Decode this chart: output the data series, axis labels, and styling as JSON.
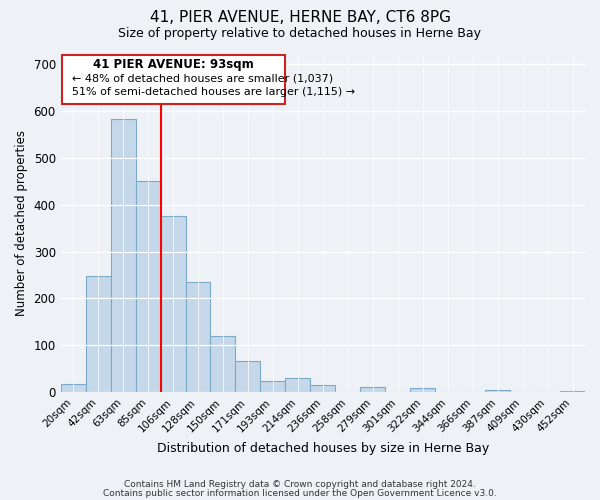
{
  "title": "41, PIER AVENUE, HERNE BAY, CT6 8PG",
  "subtitle": "Size of property relative to detached houses in Herne Bay",
  "xlabel": "Distribution of detached houses by size in Herne Bay",
  "ylabel": "Number of detached properties",
  "bar_color": "#c5d8ea",
  "bar_edge_color": "#7aaac8",
  "categories": [
    "20sqm",
    "42sqm",
    "63sqm",
    "85sqm",
    "106sqm",
    "128sqm",
    "150sqm",
    "171sqm",
    "193sqm",
    "214sqm",
    "236sqm",
    "258sqm",
    "279sqm",
    "301sqm",
    "322sqm",
    "344sqm",
    "366sqm",
    "387sqm",
    "409sqm",
    "430sqm",
    "452sqm"
  ],
  "values": [
    18,
    247,
    583,
    450,
    375,
    235,
    120,
    67,
    23,
    30,
    14,
    0,
    10,
    0,
    8,
    0,
    0,
    4,
    0,
    0,
    2
  ],
  "ylim": [
    0,
    720
  ],
  "yticks": [
    0,
    100,
    200,
    300,
    400,
    500,
    600,
    700
  ],
  "red_line_x": 3.5,
  "annotation_title": "41 PIER AVENUE: 93sqm",
  "annotation_line1": "← 48% of detached houses are smaller (1,037)",
  "annotation_line2": "51% of semi-detached houses are larger (1,115) →",
  "footer1": "Contains HM Land Registry data © Crown copyright and database right 2024.",
  "footer2": "Contains public sector information licensed under the Open Government Licence v3.0.",
  "background_color": "#eef2f7"
}
